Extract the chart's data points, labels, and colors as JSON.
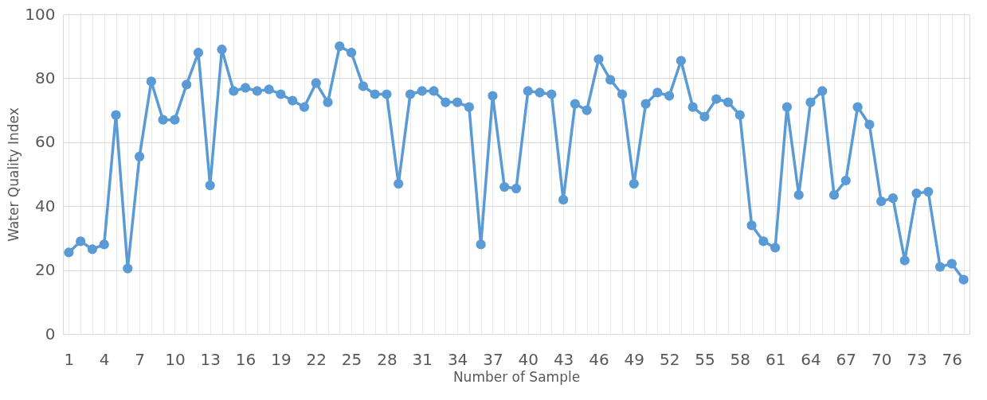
{
  "chart_data": {
    "type": "line",
    "xlabel": "Number of Sample",
    "ylabel": "Water Quality Index",
    "categories": [
      "1",
      null,
      null,
      "4",
      null,
      null,
      "7",
      null,
      null,
      "10",
      null,
      null,
      "13",
      null,
      null,
      "16",
      null,
      null,
      "19",
      null,
      null,
      "22",
      null,
      null,
      "25",
      null,
      null,
      "28",
      null,
      null,
      "31",
      null,
      null,
      "34",
      null,
      null,
      "37",
      null,
      null,
      "40",
      null,
      null,
      "43",
      null,
      null,
      "46",
      null,
      null,
      "49",
      null,
      null,
      "52",
      null,
      null,
      "55",
      null,
      null,
      "58",
      null,
      null,
      "61",
      null,
      null,
      "64",
      null,
      null,
      "67",
      null,
      null,
      "70",
      null,
      null,
      "73",
      null,
      null,
      "76",
      null
    ],
    "series": [
      {
        "color": "#5b9bd5",
        "values": [
          25.5,
          29,
          26.5,
          28,
          68.5,
          20.5,
          55.5,
          79,
          67,
          67,
          78,
          88,
          46.5,
          89,
          76,
          77,
          76,
          76.5,
          75,
          73,
          71,
          78.5,
          72.5,
          90,
          88,
          77.5,
          75,
          75,
          47,
          75,
          76,
          76,
          72.5,
          72.5,
          71,
          28,
          74.5,
          46,
          45.5,
          76,
          75.5,
          75,
          42,
          72,
          70,
          86,
          79.5,
          75,
          47,
          72,
          75.5,
          74.5,
          85.5,
          71,
          68,
          73.5,
          72.5,
          68.5,
          34,
          29,
          27,
          71,
          43.5,
          72.5,
          76,
          43.5,
          48,
          71,
          65.5,
          41.5,
          42.5,
          23,
          44,
          44.5,
          21,
          22,
          17
        ]
      }
    ],
    "ylim": [
      0,
      100
    ],
    "yticks": [
      0,
      20,
      40,
      60,
      80,
      100
    ],
    "grid": true,
    "marker": "circle",
    "line_style": "solid"
  }
}
